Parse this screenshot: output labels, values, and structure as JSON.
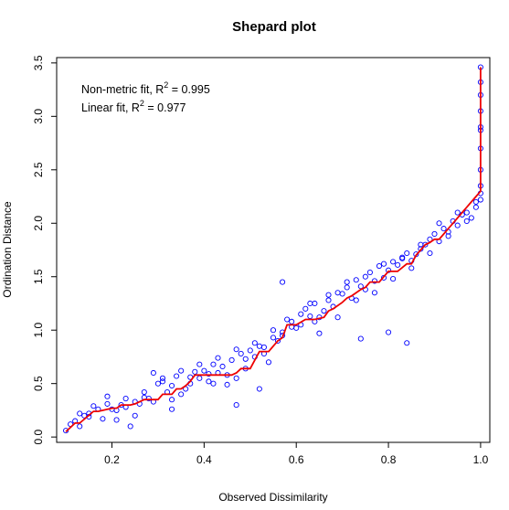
{
  "chart_data": {
    "type": "scatter",
    "title": "Shepard plot",
    "xlabel": "Observed Dissimilarity",
    "ylabel": "Ordination Distance",
    "xlim": [
      0.08,
      1.02
    ],
    "ylim": [
      -0.05,
      3.55
    ],
    "x_ticks": [
      0.2,
      0.4,
      0.6,
      0.8,
      1.0
    ],
    "x_tick_labels": [
      "0.2",
      "0.4",
      "0.6",
      "0.8",
      "1.0"
    ],
    "y_ticks": [
      0.0,
      0.5,
      1.0,
      1.5,
      2.0,
      2.5,
      3.0,
      3.5
    ],
    "y_tick_labels": [
      "0.0",
      "0.5",
      "1.0",
      "1.5",
      "2.0",
      "2.5",
      "3.0",
      "3.5"
    ],
    "grid": false,
    "annotations": [
      {
        "prefix": "Non-metric fit, R",
        "sup": "2",
        "suffix": " = 0.995"
      },
      {
        "prefix": "Linear fit, R",
        "sup": "2",
        "suffix": " = 0.977"
      }
    ],
    "colors": {
      "points": "#0000ff",
      "fit_line": "#ee0000"
    },
    "series": [
      {
        "kind": "points",
        "x": [
          0.1,
          0.11,
          0.12,
          0.13,
          0.14,
          0.15,
          0.16,
          0.18,
          0.19,
          0.2,
          0.21,
          0.22,
          0.23,
          0.24,
          0.25,
          0.26,
          0.27,
          0.28,
          0.29,
          0.3,
          0.31,
          0.32,
          0.33,
          0.34,
          0.35,
          0.36,
          0.37,
          0.38,
          0.39,
          0.4,
          0.41,
          0.42,
          0.43,
          0.44,
          0.45,
          0.46,
          0.47,
          0.48,
          0.49,
          0.5,
          0.51,
          0.52,
          0.53,
          0.54,
          0.55,
          0.56,
          0.57,
          0.58,
          0.59,
          0.6,
          0.61,
          0.62,
          0.63,
          0.64,
          0.65,
          0.66,
          0.67,
          0.68,
          0.69,
          0.7,
          0.71,
          0.72,
          0.73,
          0.74,
          0.75,
          0.76,
          0.77,
          0.78,
          0.79,
          0.8,
          0.81,
          0.82,
          0.83,
          0.84,
          0.85,
          0.86,
          0.87,
          0.88,
          0.89,
          0.9,
          0.91,
          0.92,
          0.93,
          0.94,
          0.95,
          0.96,
          0.97,
          0.98,
          0.99,
          1.0,
          1.0,
          1.0,
          1.0,
          1.0,
          1.0,
          1.0,
          1.0,
          1.0,
          1.0,
          1.0,
          0.13,
          0.15,
          0.17,
          0.19,
          0.21,
          0.23,
          0.25,
          0.27,
          0.29,
          0.31,
          0.33,
          0.35,
          0.37,
          0.39,
          0.41,
          0.43,
          0.45,
          0.47,
          0.49,
          0.51,
          0.53,
          0.55,
          0.57,
          0.59,
          0.61,
          0.63,
          0.65,
          0.67,
          0.69,
          0.71,
          0.73,
          0.75,
          0.77,
          0.79,
          0.81,
          0.83,
          0.85,
          0.87,
          0.89,
          0.91,
          0.93,
          0.95,
          0.97,
          0.99,
          0.57,
          0.84,
          0.8,
          0.74,
          0.64,
          0.52,
          0.47,
          0.42,
          0.33
        ],
        "y": [
          0.06,
          0.12,
          0.15,
          0.1,
          0.2,
          0.22,
          0.29,
          0.17,
          0.38,
          0.26,
          0.25,
          0.3,
          0.28,
          0.1,
          0.33,
          0.31,
          0.37,
          0.36,
          0.6,
          0.5,
          0.55,
          0.42,
          0.48,
          0.57,
          0.4,
          0.45,
          0.56,
          0.61,
          0.55,
          0.62,
          0.59,
          0.68,
          0.6,
          0.66,
          0.58,
          0.72,
          0.55,
          0.78,
          0.73,
          0.81,
          0.75,
          0.85,
          0.84,
          0.7,
          0.93,
          0.9,
          0.98,
          1.1,
          1.03,
          1.02,
          1.15,
          1.2,
          1.13,
          1.08,
          1.12,
          1.18,
          1.28,
          1.22,
          1.35,
          1.34,
          1.4,
          1.3,
          1.47,
          1.41,
          1.38,
          1.54,
          1.46,
          1.6,
          1.49,
          1.56,
          1.64,
          1.61,
          1.67,
          1.72,
          1.65,
          1.71,
          1.76,
          1.8,
          1.85,
          1.9,
          1.83,
          1.95,
          1.92,
          2.02,
          1.98,
          2.08,
          2.1,
          2.05,
          2.15,
          2.22,
          2.35,
          2.5,
          2.7,
          2.87,
          2.9,
          3.05,
          3.2,
          3.32,
          3.46,
          2.28,
          0.22,
          0.19,
          0.26,
          0.31,
          0.16,
          0.36,
          0.2,
          0.42,
          0.33,
          0.52,
          0.26,
          0.62,
          0.5,
          0.68,
          0.52,
          0.74,
          0.49,
          0.82,
          0.64,
          0.88,
          0.78,
          1.0,
          0.95,
          1.08,
          1.05,
          1.25,
          0.97,
          1.33,
          1.12,
          1.45,
          1.28,
          1.5,
          1.35,
          1.62,
          1.48,
          1.68,
          1.58,
          1.8,
          1.72,
          2.0,
          1.88,
          2.1,
          2.02,
          2.2,
          1.45,
          0.88,
          0.98,
          0.92,
          1.25,
          0.45,
          0.3,
          0.5,
          0.35
        ]
      },
      {
        "kind": "step-fit",
        "x": [
          0.1,
          0.12,
          0.13,
          0.16,
          0.17,
          0.2,
          0.21,
          0.22,
          0.24,
          0.25,
          0.26,
          0.27,
          0.3,
          0.31,
          0.33,
          0.34,
          0.35,
          0.36,
          0.37,
          0.38,
          0.4,
          0.42,
          0.44,
          0.46,
          0.47,
          0.48,
          0.5,
          0.52,
          0.54,
          0.56,
          0.57,
          0.58,
          0.6,
          0.62,
          0.64,
          0.66,
          0.67,
          0.68,
          0.7,
          0.71,
          0.72,
          0.74,
          0.75,
          0.76,
          0.78,
          0.79,
          0.8,
          0.82,
          0.84,
          0.85,
          0.86,
          0.87,
          0.88,
          0.89,
          0.9,
          0.91,
          0.92,
          0.93,
          0.94,
          0.95,
          0.96,
          0.97,
          0.98,
          0.99,
          1.0,
          1.0,
          1.0
        ],
        "y": [
          0.05,
          0.13,
          0.13,
          0.24,
          0.24,
          0.27,
          0.27,
          0.3,
          0.3,
          0.31,
          0.33,
          0.35,
          0.35,
          0.4,
          0.4,
          0.45,
          0.45,
          0.48,
          0.52,
          0.58,
          0.58,
          0.58,
          0.58,
          0.58,
          0.6,
          0.64,
          0.64,
          0.8,
          0.8,
          0.9,
          0.93,
          1.05,
          1.05,
          1.1,
          1.1,
          1.12,
          1.18,
          1.2,
          1.26,
          1.3,
          1.32,
          1.38,
          1.4,
          1.45,
          1.45,
          1.5,
          1.55,
          1.55,
          1.62,
          1.62,
          1.7,
          1.75,
          1.8,
          1.82,
          1.85,
          1.85,
          1.9,
          1.95,
          2.0,
          2.05,
          2.1,
          2.15,
          2.2,
          2.25,
          2.3,
          2.4,
          3.46
        ]
      }
    ]
  }
}
